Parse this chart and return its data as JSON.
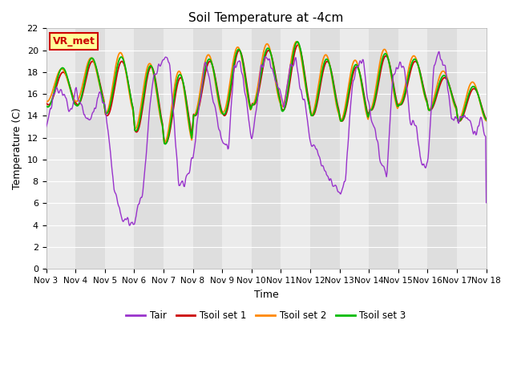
{
  "title": "Soil Temperature at -4cm",
  "xlabel": "Time",
  "ylabel": "Temperature (C)",
  "ylim": [
    0,
    22
  ],
  "yticks": [
    0,
    2,
    4,
    6,
    8,
    10,
    12,
    14,
    16,
    18,
    20,
    22
  ],
  "xtick_labels": [
    "Nov 3",
    "Nov 4",
    "Nov 5",
    "Nov 6",
    "Nov 7",
    "Nov 8",
    "Nov 9",
    "Nov 10",
    "Nov 11",
    "Nov 12",
    "Nov 13",
    "Nov 14",
    "Nov 15",
    "Nov 16",
    "Nov 17",
    "Nov 18"
  ],
  "annotation_text": "VR_met",
  "annotation_text_color": "#CC0000",
  "annotation_border_color": "#CC0000",
  "annotation_bg": "#FFFF99",
  "line_colors": {
    "Tair": "#9933CC",
    "Tsoil_set1": "#CC0000",
    "Tsoil_set2": "#FF8800",
    "Tsoil_set3": "#00BB00"
  },
  "legend_labels": [
    "Tair",
    "Tsoil set 1",
    "Tsoil set 2",
    "Tsoil set 3"
  ],
  "plot_bg_light": "#EBEBEB",
  "plot_bg_dark": "#DEDEDE",
  "grid_color": "#FFFFFF",
  "n_days": 15,
  "n_ppd": 48
}
